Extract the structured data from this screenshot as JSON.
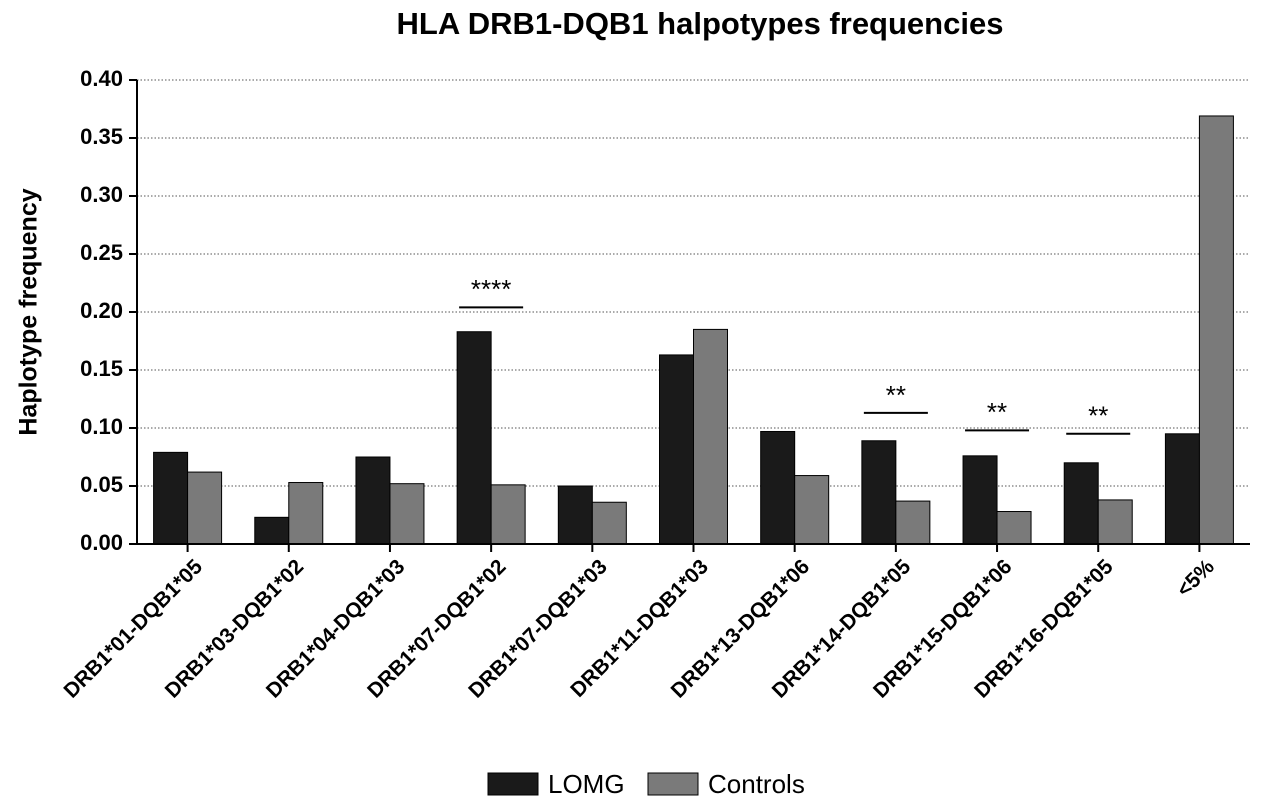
{
  "chart_data": {
    "type": "bar",
    "title": "HLA DRB1-DQB1 halpotypes frequencies",
    "y_label": "Haplotype frequency",
    "categories": [
      "DRB1*01-DQB1*05",
      "DRB1*03-DQB1*02",
      "DRB1*04-DQB1*03",
      "DRB1*07-DQB1*02",
      "DRB1*07-DQB1*03",
      "DRB1*11-DQB1*03",
      "DRB1*13-DQB1*06",
      "DRB1*14-DQB1*05",
      "DRB1*15-DQB1*06",
      "DRB1*16-DQB1*05",
      "<5%"
    ],
    "series": [
      {
        "name": "LOMG",
        "color": "#1a1a1a",
        "values": [
          0.079,
          0.023,
          0.075,
          0.183,
          0.05,
          0.163,
          0.097,
          0.089,
          0.076,
          0.07,
          0.095
        ]
      },
      {
        "name": "Controls",
        "color": "#7a7a7a",
        "values": [
          0.062,
          0.053,
          0.052,
          0.051,
          0.036,
          0.185,
          0.059,
          0.037,
          0.028,
          0.038,
          0.369
        ]
      }
    ],
    "ylim": [
      0,
      0.4
    ],
    "yticks": [
      {
        "value": 0,
        "label": "0.00"
      },
      {
        "value": 0.05,
        "label": "0.05"
      },
      {
        "value": 0.1,
        "label": "0.10"
      },
      {
        "value": 0.15,
        "label": "0.15"
      },
      {
        "value": 0.2,
        "label": "0.20"
      },
      {
        "value": 0.25,
        "label": "0.25"
      },
      {
        "value": 0.3,
        "label": "0.30"
      },
      {
        "value": 0.35,
        "label": "0.35"
      },
      {
        "value": 0.4,
        "label": "0.40"
      }
    ],
    "grid": true,
    "legend": "bottom",
    "annotations": [
      {
        "text": "****",
        "category": "DRB1*07-DQB1*02",
        "y": 0.204
      },
      {
        "text": "**",
        "category": "DRB1*14-DQB1*05",
        "y": 0.113
      },
      {
        "text": "**",
        "category": "DRB1*15-DQB1*06",
        "y": 0.098
      },
      {
        "text": "**",
        "category": "DRB1*16-DQB1*05",
        "y": 0.095
      }
    ]
  }
}
